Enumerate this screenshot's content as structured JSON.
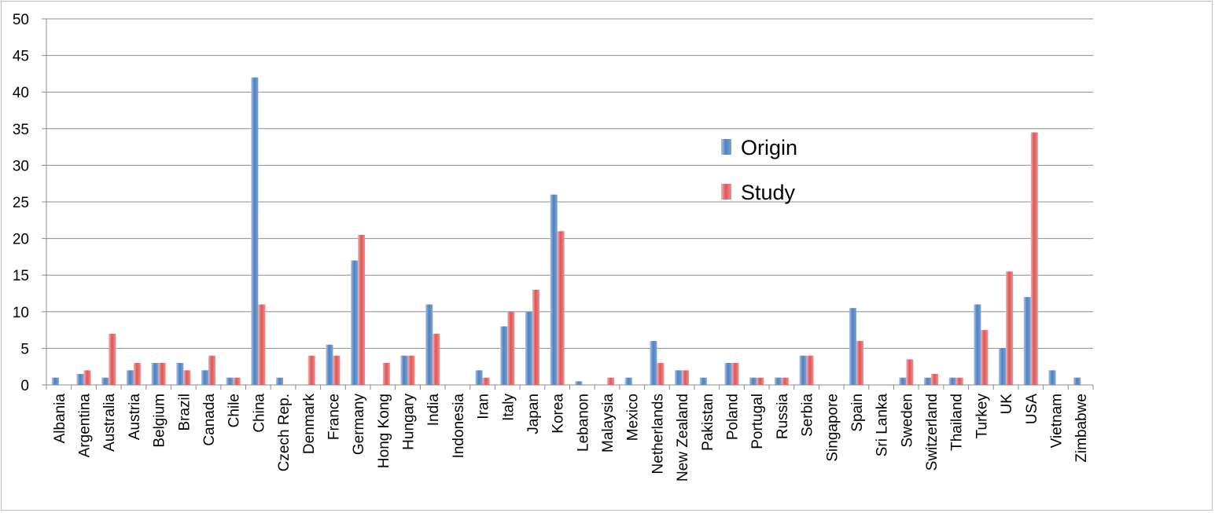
{
  "chart_data": {
    "type": "bar",
    "title": "",
    "xlabel": "",
    "ylabel": "",
    "ylim": [
      0,
      50
    ],
    "yticks": [
      0,
      5,
      10,
      15,
      20,
      25,
      30,
      35,
      40,
      45,
      50
    ],
    "grid": true,
    "legend_position": "right",
    "categories": [
      "Albania",
      "Argentina",
      "Australia",
      "Austria",
      "Belgium",
      "Brazil",
      "Canada",
      "Chile",
      "China",
      "Czech Rep.",
      "Denmark",
      "France",
      "Germany",
      "Hong Kong",
      "Hungary",
      "India",
      "Indonesia",
      "Iran",
      "Italy",
      "Japan",
      "Korea",
      "Lebanon",
      "Malaysia",
      "Mexico",
      "Netherlands",
      "New Zealand",
      "Pakistan",
      "Poland",
      "Portugal",
      "Russia",
      "Serbia",
      "Singapore",
      "Spain",
      "Sri Lanka",
      "Sweden",
      "Switzerland",
      "Thailand",
      "Turkey",
      "UK",
      "USA",
      "Vietnam",
      "Zimbabwe"
    ],
    "series": [
      {
        "name": "Origin",
        "color": "#4f81bd",
        "values": [
          1,
          1.5,
          1,
          2,
          3,
          3,
          2,
          1,
          42,
          1,
          0,
          5.5,
          17,
          0,
          4,
          11,
          0,
          2,
          8,
          10,
          26,
          0.5,
          0,
          1,
          6,
          2,
          1,
          3,
          1,
          1,
          4,
          0,
          10.5,
          0,
          1,
          1,
          1,
          11,
          5,
          12,
          2,
          1
        ]
      },
      {
        "name": "Study",
        "color": "#e05555",
        "values": [
          0,
          2,
          7,
          3,
          3,
          2,
          4,
          1,
          11,
          0,
          4,
          4,
          20.5,
          3,
          4,
          7,
          0,
          1,
          10,
          13,
          21,
          0,
          1,
          0,
          3,
          2,
          0,
          3,
          1,
          1,
          4,
          0,
          6,
          0,
          3.5,
          1.5,
          1,
          7.5,
          15.5,
          34.5,
          0,
          0
        ]
      }
    ]
  }
}
